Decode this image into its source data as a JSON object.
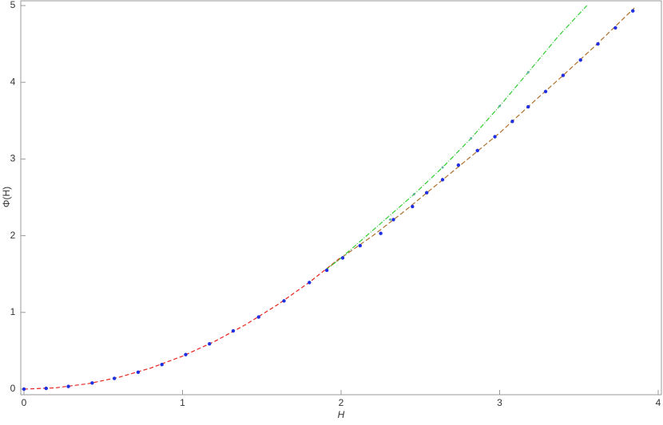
{
  "chart_data": {
    "type": "line",
    "x_label": "H",
    "y_label": "Φ(H)",
    "xlim": [
      0,
      4
    ],
    "ylim": [
      0,
      5
    ],
    "xticks": [
      0,
      1,
      2,
      3,
      4
    ],
    "yticks": [
      0,
      1,
      2,
      3,
      4,
      5
    ],
    "series": [
      {
        "color": "#e8221b",
        "mode": "line",
        "dash": "5,3",
        "x": [
          0,
          0.2,
          0.4,
          0.6,
          0.8,
          1.0,
          1.2,
          1.4,
          1.6,
          1.8,
          2.0
        ],
        "values": [
          0,
          0.017,
          0.069,
          0.155,
          0.275,
          0.43,
          0.619,
          0.843,
          1.101,
          1.393,
          1.72
        ]
      },
      {
        "color": "#b0702a",
        "mode": "line",
        "dash": "6,3",
        "x": [
          1.9,
          2.0,
          2.2,
          2.4,
          2.6,
          2.8,
          3.0,
          3.2,
          3.4,
          3.6,
          3.85
        ],
        "values": [
          1.55,
          1.71,
          2.0,
          2.32,
          2.66,
          3.0,
          3.34,
          3.72,
          4.09,
          4.47,
          4.97
        ]
      },
      {
        "color": "#33cc33",
        "mode": "line",
        "dash": "6,2,1,2",
        "x": [
          1.9,
          2.0,
          2.2,
          2.46,
          2.64,
          2.82,
          3.0,
          3.18,
          3.37,
          3.55
        ],
        "values": [
          1.55,
          1.71,
          2.07,
          2.54,
          2.89,
          3.27,
          3.69,
          4.13,
          4.6,
          5.0
        ]
      },
      {
        "color": "#2030e0",
        "mode": "points",
        "size": 2.2,
        "x": [
          0,
          0.14,
          0.28,
          0.43,
          0.57,
          0.72,
          0.87,
          1.02,
          1.17,
          1.32,
          1.48,
          1.64,
          1.8,
          1.91,
          2.01,
          2.12,
          2.25,
          2.33,
          2.45,
          2.54,
          2.64,
          2.74,
          2.86,
          2.97,
          3.08,
          3.18,
          3.29,
          3.4,
          3.51,
          3.62,
          3.73,
          3.84
        ],
        "values": [
          0,
          0.01,
          0.035,
          0.08,
          0.14,
          0.22,
          0.32,
          0.45,
          0.59,
          0.76,
          0.94,
          1.15,
          1.39,
          1.55,
          1.71,
          1.87,
          2.03,
          2.21,
          2.38,
          2.56,
          2.73,
          2.92,
          3.11,
          3.29,
          3.49,
          3.68,
          3.88,
          4.09,
          4.29,
          4.5,
          4.71,
          4.93
        ]
      },
      {
        "color": "#5fb0a0",
        "mode": "points",
        "size": 1.5,
        "x": [
          2.31,
          2.46,
          2.64,
          2.82,
          3.0,
          3.18
        ],
        "values": [
          2.21,
          2.54,
          2.89,
          3.27,
          3.69,
          4.13
        ]
      }
    ]
  }
}
